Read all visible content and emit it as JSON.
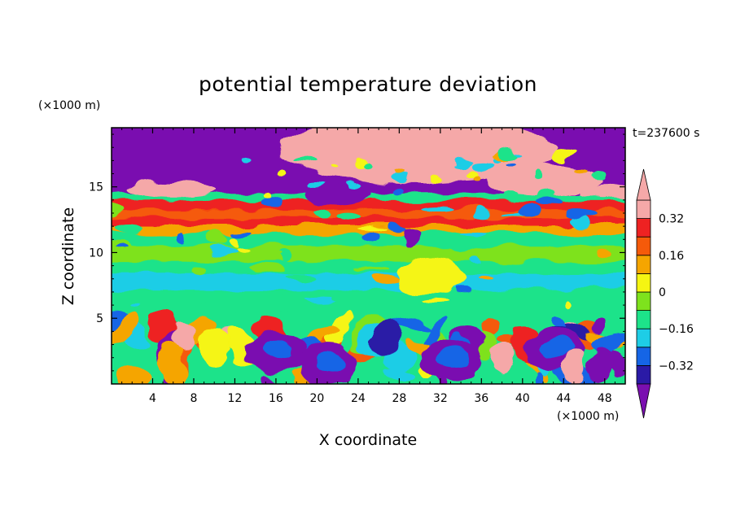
{
  "chart_data": {
    "type": "heatmap",
    "title": "potential temperature deviation",
    "time_label": "t=237600 s",
    "xlabel": "X coordinate",
    "ylabel": "Z coordinate",
    "x_unit": "(×1000 m)",
    "y_unit": "(×1000 m)",
    "xlim": [
      0,
      50
    ],
    "ylim": [
      0,
      19.5
    ],
    "x_ticks": [
      4,
      8,
      12,
      16,
      20,
      24,
      28,
      32,
      36,
      40,
      44,
      48
    ],
    "y_ticks": [
      5,
      10,
      15
    ],
    "colorbar": {
      "levels": [
        -0.4,
        -0.32,
        -0.24,
        -0.16,
        -0.08,
        0,
        0.08,
        0.16,
        0.24,
        0.32,
        0.4
      ],
      "labeled_levels": [
        0.32,
        0.16,
        0,
        -0.16,
        -0.32
      ],
      "tick_labels": [
        "0.32",
        "0.16",
        "0",
        "−0.16",
        "−0.32"
      ],
      "colors_low_to_high": [
        "#7a0fb0",
        "#2a1aa6",
        "#1565e6",
        "#1ecde6",
        "#1de38a",
        "#7ee21d",
        "#f5f512",
        "#f5a500",
        "#f55a0a",
        "#ee2222",
        "#f5a8a8"
      ]
    },
    "bands": [
      {
        "z": [
          0,
          4.8
        ],
        "pattern": "turbulent eddies",
        "mean": -0.05
      },
      {
        "z": [
          4.8,
          8.5
        ],
        "pattern": "layer",
        "mean": 0.02
      },
      {
        "z": [
          8.5,
          11.5
        ],
        "pattern": "layer",
        "mean": 0.06
      },
      {
        "z": [
          11.5,
          14
        ],
        "pattern": "layer",
        "mean": 0.24
      },
      {
        "z": [
          14,
          19.5
        ],
        "pattern": "mixed",
        "mean": 0.0
      }
    ]
  }
}
